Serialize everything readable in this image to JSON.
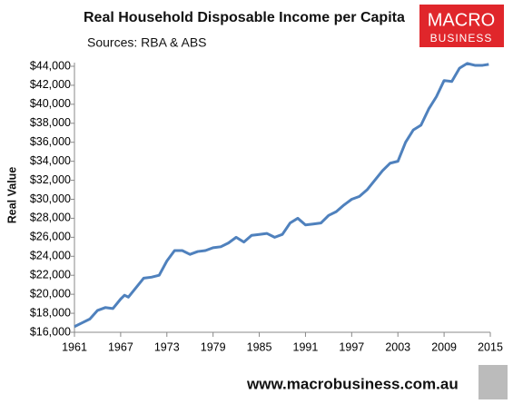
{
  "chart_data": {
    "type": "line",
    "title": "Real Household Disposable Income per Capita",
    "subtitle": "Sources: RBA & ABS",
    "ylabel": "Real Value",
    "logo": [
      "MACRO",
      "BUSINESS"
    ],
    "footer": "www.macrobusiness.com.au",
    "x": [
      1961,
      1962,
      1963,
      1964,
      1965,
      1966,
      1967,
      1967.5,
      1968,
      1969,
      1970,
      1971,
      1972,
      1973,
      1974,
      1975,
      1976,
      1977,
      1978,
      1979,
      1980,
      1981,
      1982,
      1983,
      1984,
      1985,
      1986,
      1987,
      1988,
      1989,
      1990,
      1991,
      1992,
      1993,
      1994,
      1995,
      1996,
      1997,
      1998,
      1999,
      2000,
      2001,
      2002,
      2003,
      2004,
      2005,
      2006,
      2007,
      2008,
      2009,
      2010,
      2011,
      2012,
      2013,
      2014,
      2014.8
    ],
    "series": [
      {
        "name": "Real Household Disposable Income per Capita",
        "color": "#4f81bd",
        "values": [
          16600,
          17000,
          17400,
          18300,
          18600,
          18500,
          19500,
          19900,
          19700,
          20700,
          21700,
          21800,
          22000,
          23500,
          24600,
          24600,
          24200,
          24500,
          24600,
          24900,
          25000,
          25400,
          26000,
          25500,
          26200,
          26300,
          26400,
          26000,
          26300,
          27500,
          28000,
          27300,
          27400,
          27500,
          28300,
          28700,
          29400,
          30000,
          30300,
          31000,
          32000,
          33000,
          33800,
          34000,
          36000,
          37300,
          37800,
          39500,
          40800,
          42500,
          42400,
          43800,
          44300,
          44100,
          44100,
          44200
        ]
      }
    ],
    "xlim": [
      1961,
      2015
    ],
    "xticks": [
      1961,
      1967,
      1973,
      1979,
      1985,
      1991,
      1997,
      2003,
      2009,
      2015
    ],
    "ylim": [
      16000,
      44000
    ],
    "yticks": [
      {
        "value": 16000,
        "label": "$16,000"
      },
      {
        "value": 18000,
        "label": "$18,000"
      },
      {
        "value": 20000,
        "label": "$20,000"
      },
      {
        "value": 22000,
        "label": "$22,000"
      },
      {
        "value": 24000,
        "label": "$24,000"
      },
      {
        "value": 26000,
        "label": "$26,000"
      },
      {
        "value": 28000,
        "label": "$28,000"
      },
      {
        "value": 30000,
        "label": "$30,000"
      },
      {
        "value": 32000,
        "label": "$32,000"
      },
      {
        "value": 34000,
        "label": "$34,000"
      },
      {
        "value": 36000,
        "label": "$36,000"
      },
      {
        "value": 38000,
        "label": "$38,000"
      },
      {
        "value": 40000,
        "label": "$40,000"
      },
      {
        "value": 42000,
        "label": "$42,000"
      },
      {
        "value": 44000,
        "label": "$44,000"
      }
    ],
    "grid": false
  }
}
